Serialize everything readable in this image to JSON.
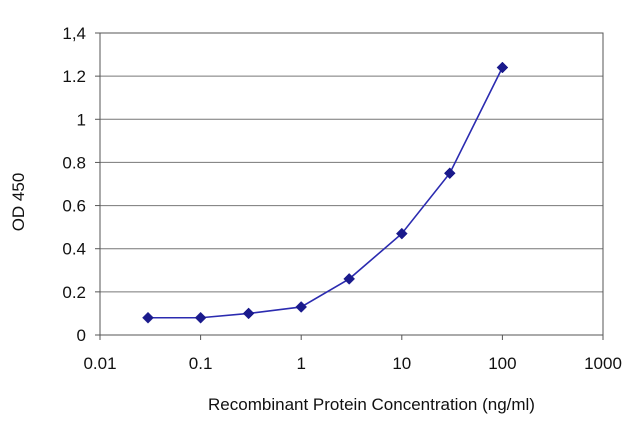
{
  "chart_data": {
    "type": "line",
    "title": "",
    "xlabel": "Recombinant Protein Concentration (ng/ml)",
    "ylabel": "OD 450",
    "x_scale": "log",
    "xlim": [
      0.01,
      1000
    ],
    "ylim": [
      0,
      1.4
    ],
    "x_ticks": [
      "0.01",
      "0.1",
      "1",
      "10",
      "100",
      "1000"
    ],
    "y_ticks": [
      "0",
      "0.2",
      "0.4",
      "0.6",
      "0.8",
      "1",
      "1.2",
      "1,4"
    ],
    "grid": "horizontal",
    "legend": "none",
    "series": [
      {
        "x": [
          0.03,
          0.1,
          0.3,
          1,
          3,
          10,
          30,
          100
        ],
        "y": [
          0.08,
          0.08,
          0.1,
          0.13,
          0.26,
          0.47,
          0.75,
          1.24
        ],
        "color": "#2b2bb0",
        "marker": "diamond"
      }
    ]
  }
}
